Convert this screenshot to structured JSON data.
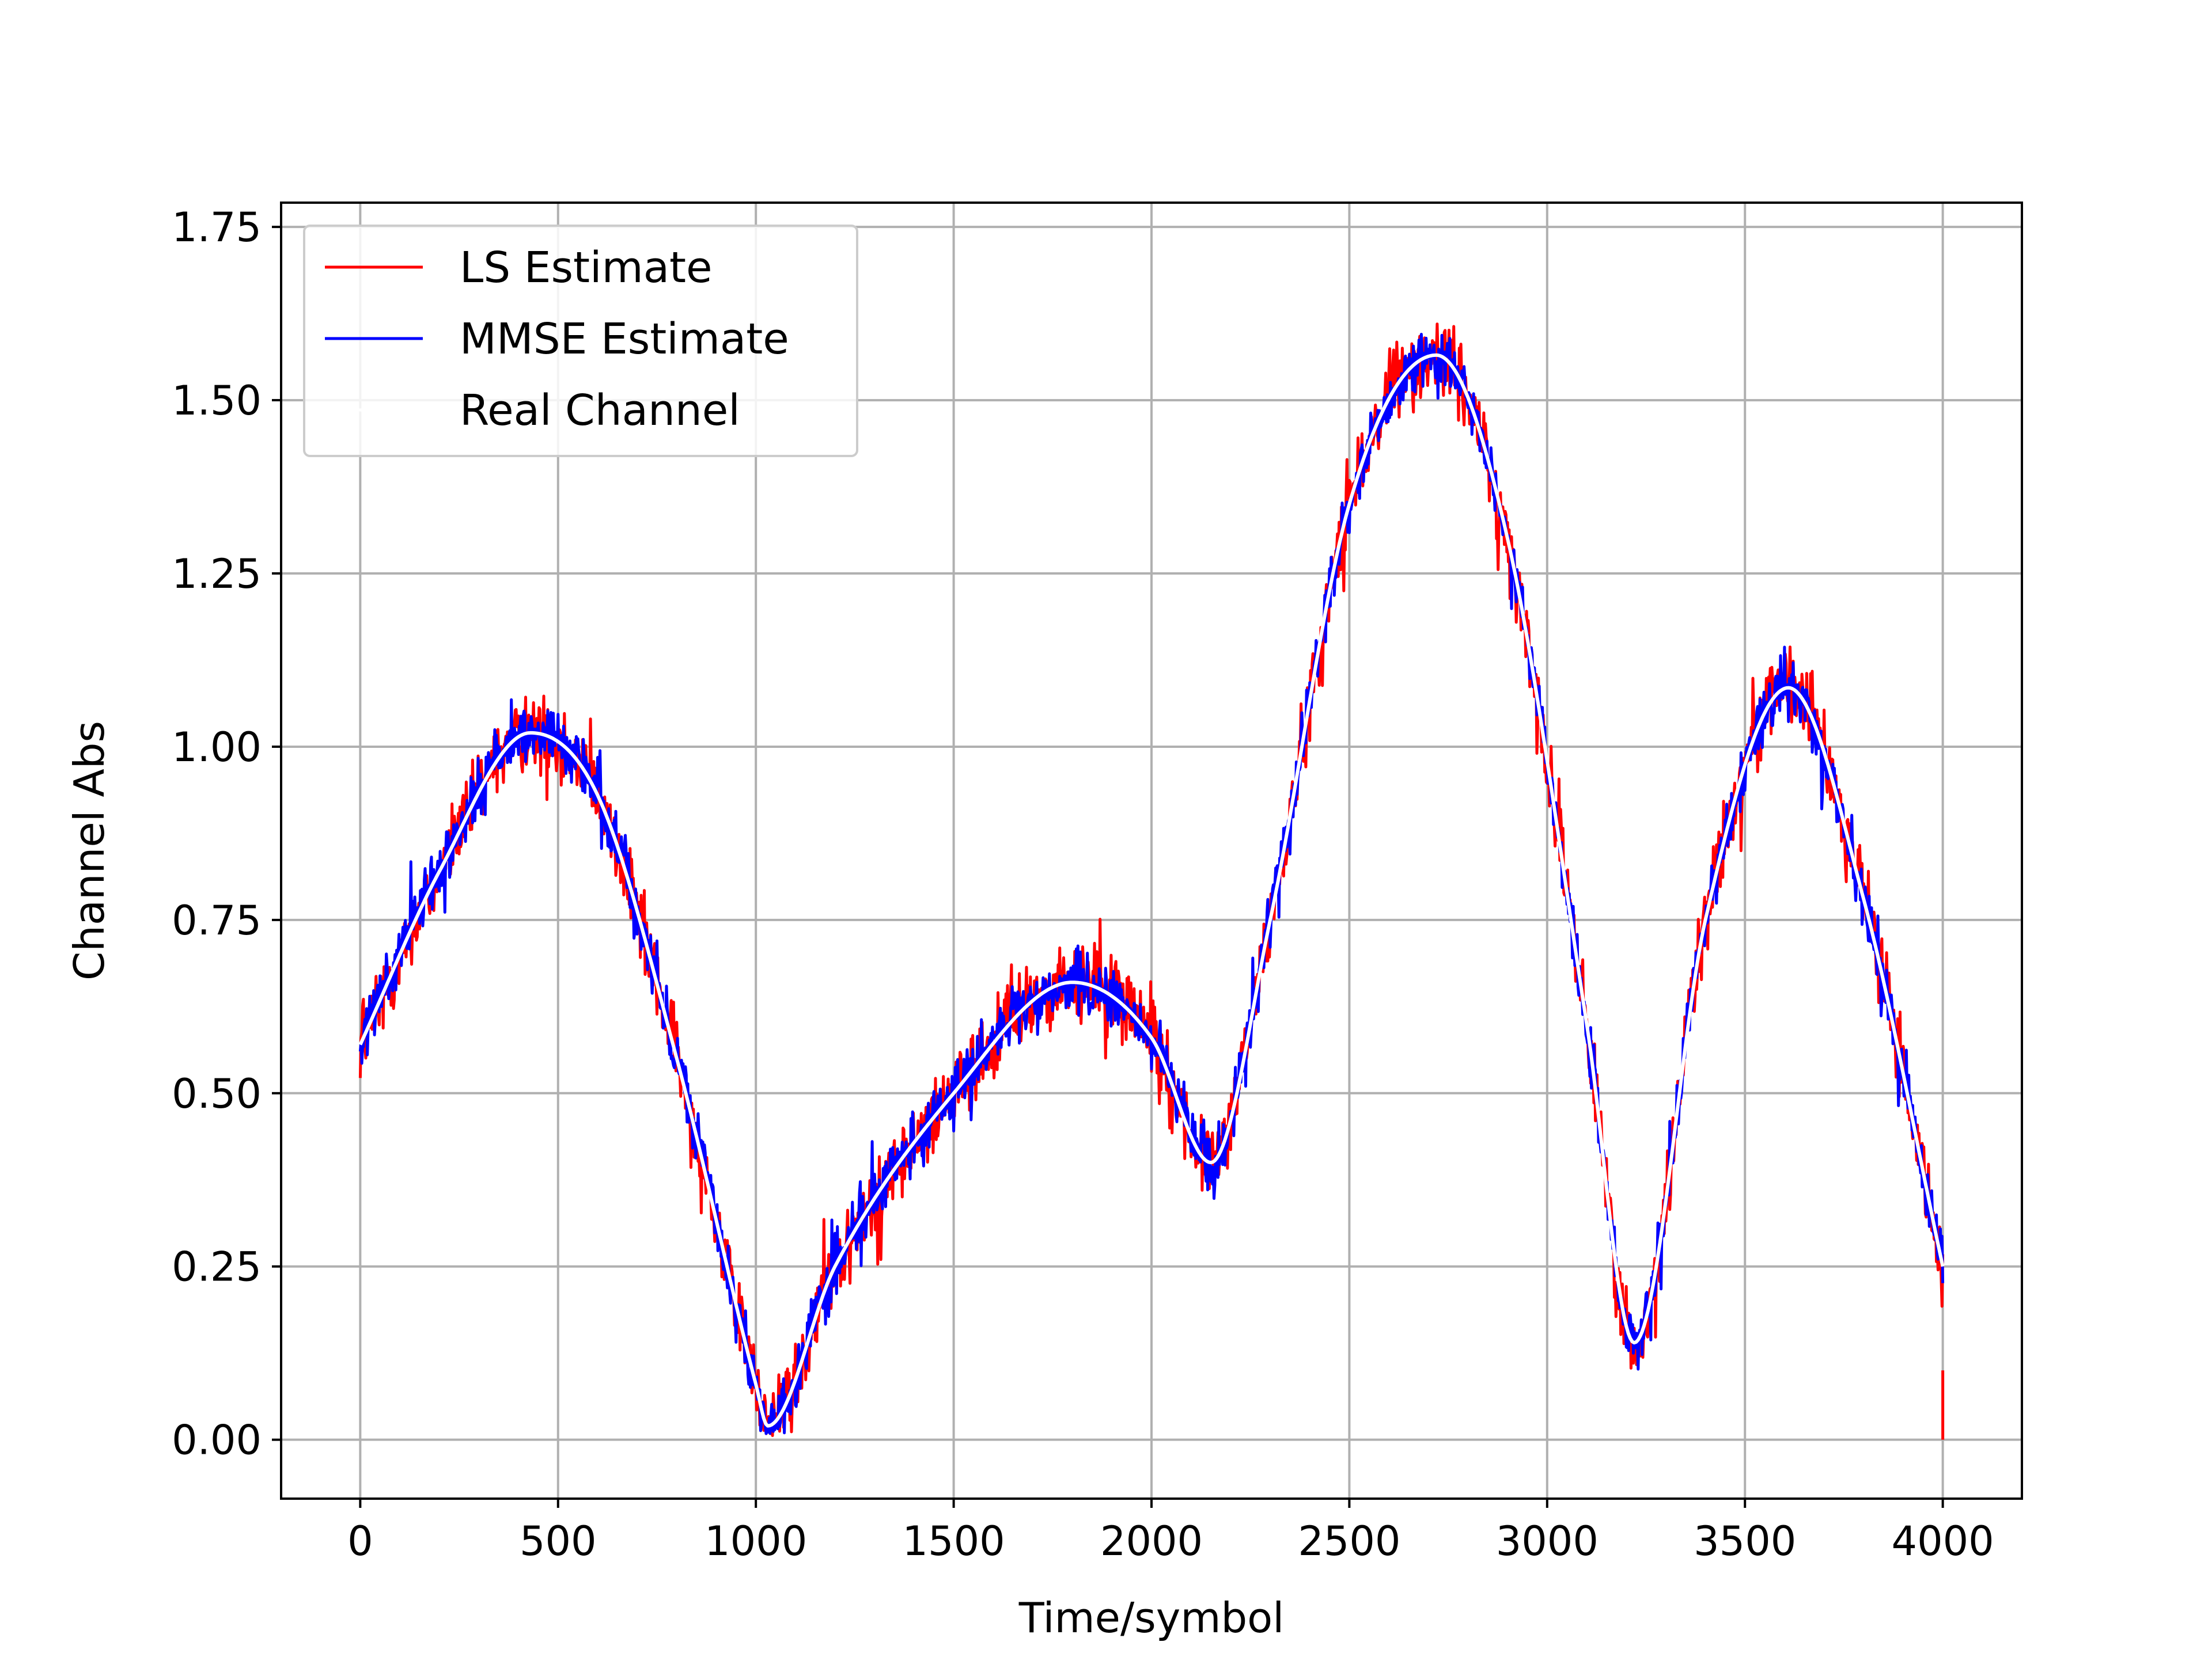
{
  "chart_data": {
    "type": "line",
    "xlabel": "Time/symbol",
    "ylabel": "Channel Abs",
    "xlim": [
      -200,
      4200
    ],
    "ylim": [
      -0.085,
      1.785
    ],
    "grid": true,
    "legend_position": "top-left",
    "x_ticks": [
      0,
      500,
      1000,
      1500,
      2000,
      2500,
      3000,
      3500,
      4000
    ],
    "x_tick_labels": [
      "0",
      "500",
      "1000",
      "1500",
      "2000",
      "2500",
      "3000",
      "3500",
      "4000"
    ],
    "y_ticks": [
      0,
      0.25,
      0.5,
      0.75,
      1.0,
      1.25,
      1.5,
      1.75
    ],
    "y_tick_labels": [
      "0.00",
      "0.25",
      "0.50",
      "0.75",
      "1.00",
      "1.25",
      "1.50",
      "1.75"
    ],
    "real_channel_key_points": {
      "x": [
        0,
        200,
        430,
        600,
        800,
        1000,
        1030,
        1200,
        1500,
        1800,
        2000,
        2150,
        2300,
        2500,
        2720,
        2900,
        3100,
        3220,
        3400,
        3610,
        3800,
        4000
      ],
      "y": [
        0.57,
        0.82,
        1.02,
        0.93,
        0.55,
        0.08,
        0.02,
        0.25,
        0.5,
        0.66,
        0.58,
        0.4,
        0.75,
        1.35,
        1.565,
        1.3,
        0.6,
        0.14,
        0.75,
        1.085,
        0.78,
        0.25
      ]
    },
    "noise_amplitude": {
      "LS Estimate": 0.05,
      "MMSE Estimate": 0.04
    },
    "series": [
      {
        "name": "LS Estimate",
        "color": "#ff0000",
        "style": "noisy-line",
        "x_range": [
          0,
          4000
        ]
      },
      {
        "name": "MMSE Estimate",
        "color": "#0000ff",
        "style": "noisy-line",
        "x_range": [
          0,
          4000
        ]
      },
      {
        "name": "Real Channel",
        "color": "#ffffff",
        "style": "smooth-line",
        "x_range": [
          0,
          4000
        ]
      }
    ]
  }
}
